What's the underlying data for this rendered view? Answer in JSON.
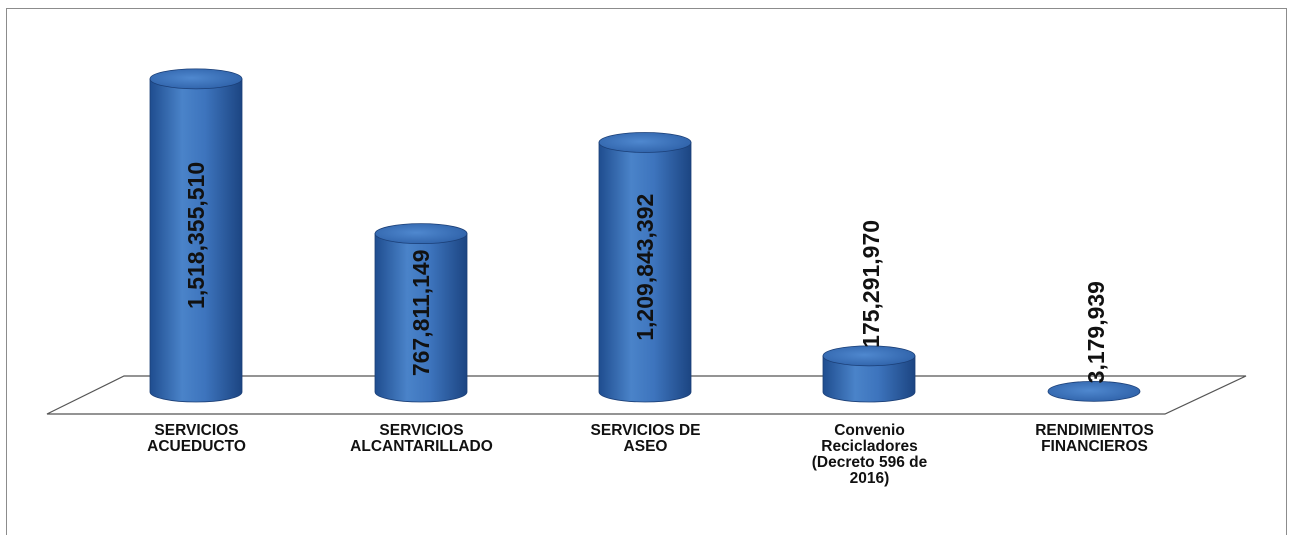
{
  "chart_data": {
    "type": "bar",
    "categories": [
      "SERVICIOS\nACUEDUCTO",
      "SERVICIOS\nALCANTARILLADO",
      "SERVICIOS DE\nASEO",
      "Convenio\nRecicladores\n(Decreto 596 de\n2016)",
      "RENDIMIENTOS\nFINANCIEROS"
    ],
    "values": [
      1518355510,
      767811149,
      1209843392,
      175291970,
      3179939
    ],
    "value_labels": [
      "1,518,355,510",
      "767,811,149",
      "1,209,843,392",
      "175,291,970",
      "3,179,939"
    ],
    "title": "",
    "xlabel": "",
    "ylabel": "",
    "ylim": [
      0,
      1600000000
    ],
    "style": "3d-cylinder",
    "bar_color": "#3a6fb8",
    "grid": false,
    "legend": "none"
  }
}
